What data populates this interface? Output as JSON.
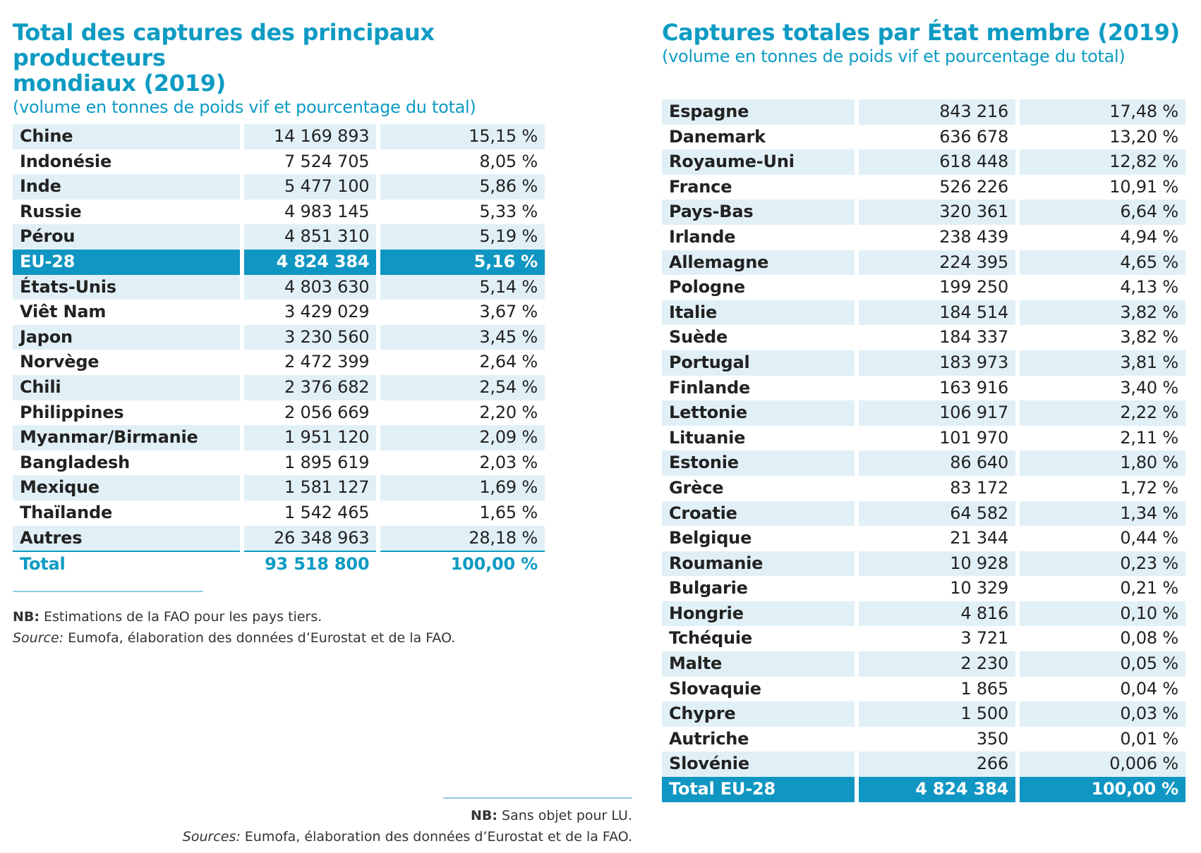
{
  "left": {
    "title_line1": "Total des captures des principaux producteurs",
    "title_line2": "mondiaux (2019)",
    "subtitle": "(volume en tonnes de poids vif et pourcentage du total)",
    "rows": [
      {
        "name": "Chine",
        "value": "14 169 893",
        "pct": "15,15 %"
      },
      {
        "name": "Indonésie",
        "value": "7 524 705",
        "pct": "8,05 %"
      },
      {
        "name": "Inde",
        "value": "5 477 100",
        "pct": "5,86 %"
      },
      {
        "name": "Russie",
        "value": "4 983 145",
        "pct": "5,33 %"
      },
      {
        "name": "Pérou",
        "value": "4 851 310",
        "pct": "5,19 %"
      },
      {
        "name": "EU-28",
        "value": "4 824 384",
        "pct": "5,16 %"
      },
      {
        "name": "États-Unis",
        "value": "4 803 630",
        "pct": "5,14 %"
      },
      {
        "name": "Viêt Nam",
        "value": "3 429 029",
        "pct": "3,67 %"
      },
      {
        "name": "Japon",
        "value": "3 230 560",
        "pct": "3,45 %"
      },
      {
        "name": "Norvège",
        "value": "2 472 399",
        "pct": "2,64 %"
      },
      {
        "name": "Chili",
        "value": "2 376 682",
        "pct": "2,54 %"
      },
      {
        "name": "Philippines",
        "value": "2 056 669",
        "pct": "2,20 %"
      },
      {
        "name": "Myanmar/Birmanie",
        "value": "1 951 120",
        "pct": "2,09 %"
      },
      {
        "name": "Bangladesh",
        "value": "1 895 619",
        "pct": "2,03 %"
      },
      {
        "name": "Mexique",
        "value": "1 581 127",
        "pct": "1,69 %"
      },
      {
        "name": "Thaïlande",
        "value": "1 542 465",
        "pct": "1,65 %"
      },
      {
        "name": "Autres",
        "value": "26 348 963",
        "pct": "28,18 %"
      }
    ],
    "total": {
      "name": "Total",
      "value": "93 518 800",
      "pct": "100,00 %"
    },
    "note_label": "NB:",
    "note_text": " Estimations de la FAO pour les pays tiers.",
    "source_label": "Source:",
    "source_text": " Eumofa, élaboration des données d’Eurostat et de la FAO."
  },
  "right": {
    "title": "Captures totales par État membre (2019)",
    "subtitle": "(volume en tonnes de poids vif et pourcentage du total)",
    "rows": [
      {
        "name": "Espagne",
        "value": "843 216",
        "pct": "17,48 %"
      },
      {
        "name": "Danemark",
        "value": "636 678",
        "pct": "13,20 %"
      },
      {
        "name": "Royaume-Uni",
        "value": "618 448",
        "pct": "12,82 %"
      },
      {
        "name": "France",
        "value": "526 226",
        "pct": "10,91 %"
      },
      {
        "name": "Pays-Bas",
        "value": "320 361",
        "pct": "6,64 %"
      },
      {
        "name": "Irlande",
        "value": "238 439",
        "pct": "4,94 %"
      },
      {
        "name": "Allemagne",
        "value": "224 395",
        "pct": "4,65 %"
      },
      {
        "name": "Pologne",
        "value": "199 250",
        "pct": "4,13 %"
      },
      {
        "name": "Italie",
        "value": "184 514",
        "pct": "3,82 %"
      },
      {
        "name": "Suède",
        "value": "184 337",
        "pct": "3,82 %"
      },
      {
        "name": "Portugal",
        "value": "183 973",
        "pct": "3,81 %"
      },
      {
        "name": "Finlande",
        "value": "163 916",
        "pct": "3,40 %"
      },
      {
        "name": "Lettonie",
        "value": "106 917",
        "pct": "2,22 %"
      },
      {
        "name": "Lituanie",
        "value": "101 970",
        "pct": "2,11 %"
      },
      {
        "name": "Estonie",
        "value": "86 640",
        "pct": "1,80 %"
      },
      {
        "name": "Grèce",
        "value": "83 172",
        "pct": "1,72 %"
      },
      {
        "name": "Croatie",
        "value": "64 582",
        "pct": "1,34 %"
      },
      {
        "name": "Belgique",
        "value": "21 344",
        "pct": "0,44 %"
      },
      {
        "name": "Roumanie",
        "value": "10 928",
        "pct": "0,23 %"
      },
      {
        "name": "Bulgarie",
        "value": "10 329",
        "pct": "0,21 %"
      },
      {
        "name": "Hongrie",
        "value": "4 816",
        "pct": "0,10 %"
      },
      {
        "name": "Tchéquie",
        "value": "3 721",
        "pct": "0,08 %"
      },
      {
        "name": "Malte",
        "value": "2 230",
        "pct": "0,05 %"
      },
      {
        "name": "Slovaquie",
        "value": "1 865",
        "pct": "0,04 %"
      },
      {
        "name": "Chypre",
        "value": "1 500",
        "pct": "0,03 %"
      },
      {
        "name": "Autriche",
        "value": "350",
        "pct": "0,01 %"
      },
      {
        "name": "Slovénie",
        "value": "266",
        "pct": "0,006 %"
      }
    ],
    "total": {
      "name": "Total EU-28",
      "value": "4 824 384",
      "pct": "100,00 %"
    },
    "note_label": "NB:",
    "note_text": " Sans objet pour LU.",
    "source_label": "Sources:",
    "source_text": " Eumofa, élaboration des données d’Eurostat et de la FAO."
  },
  "colors": {
    "accent": "#0e9bc3",
    "highlight_fill": "#1096c2",
    "row_shade": "#e1f0f6"
  }
}
